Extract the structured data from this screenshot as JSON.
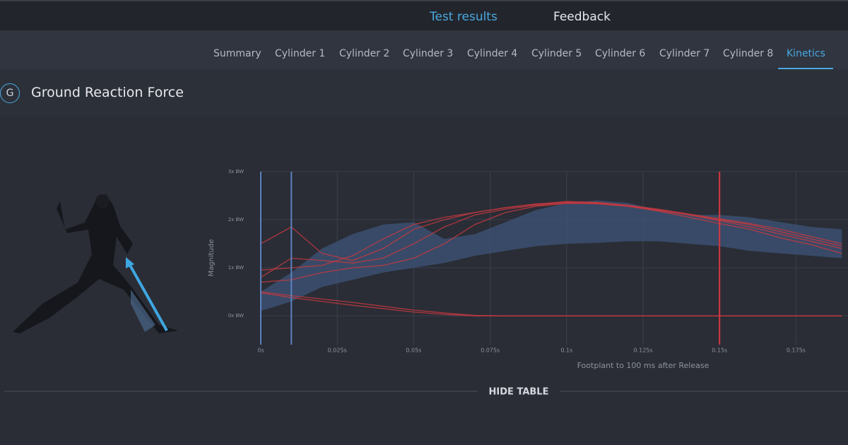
{
  "nav": {
    "tabs": [
      "Test results",
      "Feedback"
    ]
  },
  "subnav": {
    "tabs": [
      "Summary",
      "Cylinder 1",
      "Cylinder 2",
      "Cylinder 3",
      "Cylinder 4",
      "Cylinder 5",
      "Cylinder 6",
      "Cylinder 7",
      "Cylinder 8",
      "Kinetics"
    ]
  },
  "section": {
    "badge": "G",
    "title": "Ground Reaction Force"
  },
  "chart_data": {
    "type": "line",
    "ylabel": "Magnitude",
    "xlabel": "Footplant to 100 ms after Release",
    "xlim": [
      0,
      0.192
    ],
    "ylim": [
      -0.6,
      3
    ],
    "xticks": [
      {
        "value": 0,
        "label": "0s"
      },
      {
        "value": 0.025,
        "label": "0.025s"
      },
      {
        "value": 0.05,
        "label": "0.05s"
      },
      {
        "value": 0.075,
        "label": "0.075s"
      },
      {
        "value": 0.1,
        "label": "0.1s"
      },
      {
        "value": 0.125,
        "label": "0.125s"
      },
      {
        "value": 0.15,
        "label": "0.15s"
      },
      {
        "value": 0.175,
        "label": "0.175s"
      }
    ],
    "yticks": [
      {
        "value": 0,
        "label": "0x BW"
      },
      {
        "value": 1,
        "label": "1x BW"
      },
      {
        "value": 2,
        "label": "2x BW"
      },
      {
        "value": 3,
        "label": "3x BW"
      }
    ],
    "grid": true,
    "x": [
      0,
      0.01,
      0.02,
      0.03,
      0.04,
      0.05,
      0.06,
      0.07,
      0.08,
      0.09,
      0.1,
      0.11,
      0.12,
      0.13,
      0.14,
      0.15,
      0.16,
      0.17,
      0.18,
      0.19
    ],
    "band": {
      "color": "#3d5478",
      "lower": [
        0.1,
        0.3,
        0.6,
        0.75,
        0.9,
        1.0,
        1.1,
        1.25,
        1.35,
        1.45,
        1.5,
        1.52,
        1.55,
        1.55,
        1.5,
        1.45,
        1.35,
        1.3,
        1.25,
        1.2
      ],
      "upper": [
        0.5,
        0.9,
        1.4,
        1.7,
        1.9,
        1.95,
        1.6,
        1.7,
        1.95,
        2.2,
        2.35,
        2.4,
        2.35,
        2.2,
        2.1,
        2.1,
        2.05,
        1.95,
        1.85,
        1.8
      ]
    },
    "series": [
      {
        "color": "#c8383f",
        "values": [
          1.5,
          1.85,
          1.3,
          1.15,
          1.4,
          1.8,
          2.0,
          2.15,
          2.25,
          2.32,
          2.38,
          2.36,
          2.3,
          2.2,
          2.1,
          2.0,
          1.9,
          1.75,
          1.6,
          1.45
        ]
      },
      {
        "color": "#c8383f",
        "values": [
          0.95,
          1.0,
          1.05,
          1.25,
          1.6,
          1.9,
          2.05,
          2.15,
          2.25,
          2.33,
          2.35,
          2.33,
          2.28,
          2.2,
          2.1,
          1.98,
          1.85,
          1.7,
          1.55,
          1.4
        ]
      },
      {
        "color": "#c8383f",
        "values": [
          0.8,
          1.2,
          1.15,
          1.1,
          1.2,
          1.5,
          1.85,
          2.1,
          2.22,
          2.3,
          2.36,
          2.35,
          2.3,
          2.22,
          2.12,
          2.02,
          1.92,
          1.8,
          1.65,
          1.5
        ]
      },
      {
        "color": "#c8383f",
        "values": [
          0.7,
          0.75,
          0.9,
          1.0,
          1.05,
          1.2,
          1.5,
          1.9,
          2.15,
          2.28,
          2.34,
          2.34,
          2.28,
          2.18,
          2.05,
          1.92,
          1.8,
          1.62,
          1.48,
          1.3
        ]
      },
      {
        "color": "#c8383f",
        "values": [
          0.5,
          0.42,
          0.35,
          0.28,
          0.2,
          0.12,
          0.06,
          0.01,
          0,
          0,
          0,
          0,
          0,
          0,
          0,
          0,
          0,
          0,
          0,
          0
        ]
      },
      {
        "color": "#c8383f",
        "values": [
          0.48,
          0.38,
          0.3,
          0.22,
          0.15,
          0.08,
          0.03,
          0,
          0,
          0,
          0,
          0,
          0,
          0,
          0,
          0,
          0,
          0,
          0,
          0
        ]
      }
    ],
    "vlines": [
      {
        "x": 0,
        "color": "#5b82bf"
      },
      {
        "x": 0.01,
        "color": "#5b82bf"
      },
      {
        "x": 0.15,
        "color": "#d9363e"
      }
    ]
  },
  "footer": {
    "button": "HIDE TABLE"
  }
}
